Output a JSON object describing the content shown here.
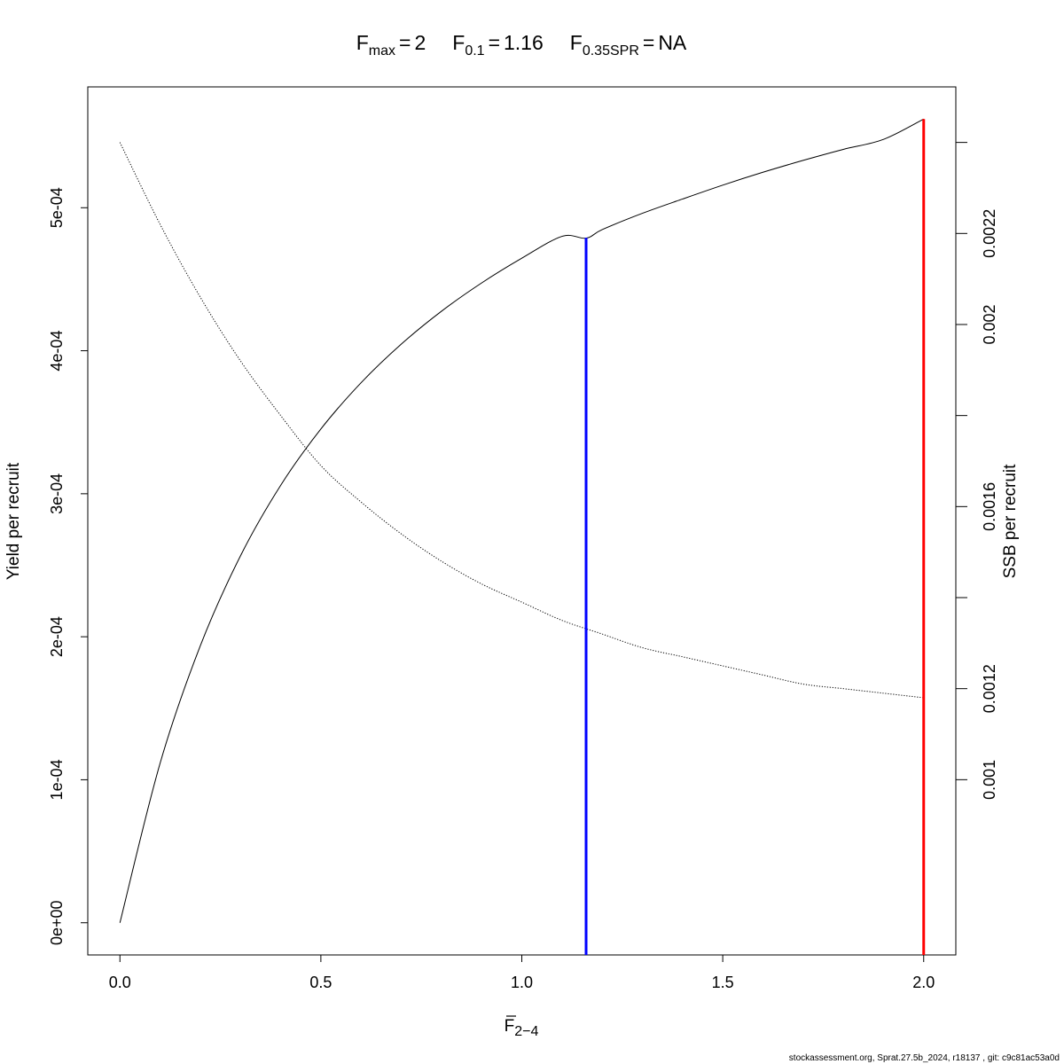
{
  "chart_data": {
    "type": "line",
    "title": {
      "fmax_base": "F",
      "fmax_sub": "max",
      "fmax_val": "2",
      "f01_base": "F",
      "f01_sub": "0.1",
      "f01_val": "1.16",
      "fspr_base": "F",
      "fspr_sub": "0.35SPR",
      "fspr_val": "NA",
      "eq": "="
    },
    "xlabel": {
      "base": "F",
      "sub": "2−4"
    },
    "ylabel_left": "Yield per recruit",
    "ylabel_right": "SSB per recruit",
    "xlim": [
      -0.08,
      2.08
    ],
    "ylim_left": [
      -2.25e-05,
      0.0005845
    ],
    "ylim_right": [
      0.000615,
      0.002522
    ],
    "x_ticks": [
      {
        "value": 0.0,
        "label": "0.0"
      },
      {
        "value": 0.5,
        "label": "0.5"
      },
      {
        "value": 1.0,
        "label": "1.0"
      },
      {
        "value": 1.5,
        "label": "1.5"
      },
      {
        "value": 2.0,
        "label": "2.0"
      }
    ],
    "y_left_ticks": [
      {
        "value": 0.0,
        "label": "0e+00"
      },
      {
        "value": 0.0001,
        "label": "1e-04"
      },
      {
        "value": 0.0002,
        "label": "2e-04"
      },
      {
        "value": 0.0003,
        "label": "3e-04"
      },
      {
        "value": 0.0004,
        "label": "4e-04"
      },
      {
        "value": 0.0005,
        "label": "5e-04"
      }
    ],
    "y_right_ticks": [
      {
        "value": 0.001,
        "label": "0.001"
      },
      {
        "value": 0.0012,
        "label": "0.0012"
      },
      {
        "value": 0.0014,
        "label": ""
      },
      {
        "value": 0.0016,
        "label": "0.0016"
      },
      {
        "value": 0.0018,
        "label": ""
      },
      {
        "value": 0.002,
        "label": "0.002"
      },
      {
        "value": 0.0022,
        "label": "0.0022"
      },
      {
        "value": 0.0024,
        "label": ""
      }
    ],
    "series": [
      {
        "axis": "left",
        "style": "solid",
        "x": [
          0,
          0.1,
          0.2,
          0.3,
          0.4,
          0.5,
          0.6,
          0.7,
          0.8,
          0.9,
          1.0,
          1.1,
          1.16,
          1.2,
          1.3,
          1.4,
          1.5,
          1.6,
          1.7,
          1.8,
          1.9,
          2.0
        ],
        "y": [
          0,
          0.0001116,
          0.0001937,
          0.0002566,
          0.0003059,
          0.0003453,
          0.0003776,
          0.0004046,
          0.0004276,
          0.0004474,
          0.0004647,
          0.00048,
          0.0004787,
          0.0004847,
          0.0004961,
          0.0005061,
          0.0005158,
          0.0005248,
          0.0005331,
          0.0005408,
          0.0005478,
          0.000562
        ]
      },
      {
        "axis": "right",
        "style": "dotted",
        "x": [
          0,
          0.1,
          0.2,
          0.3,
          0.4,
          0.5,
          0.6,
          0.7,
          0.8,
          0.9,
          1.0,
          1.1,
          1.2,
          1.3,
          1.4,
          1.5,
          1.6,
          1.7,
          1.8,
          1.9,
          2.0
        ],
        "y": [
          0.0024,
          0.00222,
          0.00206,
          0.00192,
          0.0018,
          0.00169,
          0.00161,
          0.00154,
          0.00148,
          0.00143,
          0.00139,
          0.00135,
          0.00132,
          0.00129,
          0.00127,
          0.00125,
          0.00123,
          0.00121,
          0.0012,
          0.00119,
          0.00118
        ]
      }
    ],
    "reference_lines": [
      {
        "x": 1.16,
        "color": "#0000ff",
        "y_top": 0.000479
      },
      {
        "x": 2.0,
        "color": "#ff0000",
        "y_top": 0.000562
      }
    ]
  },
  "footer": "stockassessment.org, Sprat.27.5b_2024, r18137 , git: c9c81ac53a0d"
}
